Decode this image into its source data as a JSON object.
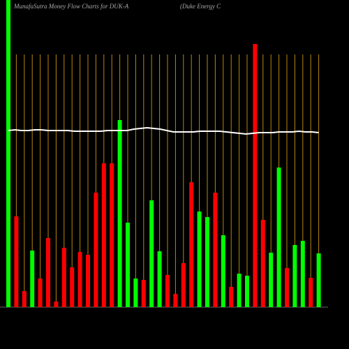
{
  "chart_data": {
    "type": "bar",
    "title": "MunafaSutra  Money Flow  Charts for DUK-A",
    "subtitle": "(Duke   Energy C",
    "ylim": [
      0,
      440
    ],
    "grid": true,
    "grid_color": "#b8860b",
    "background": "#000000",
    "series": [
      {
        "name": "Money Flow",
        "values": [
          440,
          130,
          23,
          81,
          41,
          99,
          8,
          85,
          57,
          79,
          75,
          164,
          206,
          206,
          268,
          121,
          41,
          39,
          153,
          80,
          46,
          19,
          63,
          179,
          137,
          129,
          164,
          103,
          29,
          48,
          45,
          377,
          125,
          78,
          200,
          56,
          89,
          95,
          42,
          77
        ],
        "colors": [
          "#00ff00",
          "#ff0000",
          "#ff0000",
          "#00ff00",
          "#ff0000",
          "#ff0000",
          "#ff0000",
          "#ff0000",
          "#ff0000",
          "#ff0000",
          "#ff0000",
          "#ff0000",
          "#ff0000",
          "#ff0000",
          "#00ff00",
          "#00ff00",
          "#00ff00",
          "#ff0000",
          "#00ff00",
          "#00ff00",
          "#ff0000",
          "#ff0000",
          "#ff0000",
          "#ff0000",
          "#00ff00",
          "#00ff00",
          "#ff0000",
          "#00ff00",
          "#ff0000",
          "#00ff00",
          "#00ff00",
          "#ff0000",
          "#ff0000",
          "#00ff00",
          "#00ff00",
          "#ff0000",
          "#00ff00",
          "#00ff00",
          "#ff0000",
          "#00ff00"
        ]
      },
      {
        "name": "Price",
        "type": "line",
        "color": "#ffffff",
        "values": [
          253,
          254,
          253,
          253,
          254,
          254,
          253,
          253,
          253,
          253,
          252,
          252,
          252,
          252,
          252,
          253,
          253,
          253,
          253,
          255,
          256,
          257,
          256,
          255,
          253,
          251,
          251,
          251,
          251,
          252,
          252,
          252,
          252,
          251,
          250,
          249,
          248,
          249,
          250,
          250,
          250,
          251,
          251,
          251,
          252,
          251,
          251,
          250
        ]
      }
    ]
  }
}
